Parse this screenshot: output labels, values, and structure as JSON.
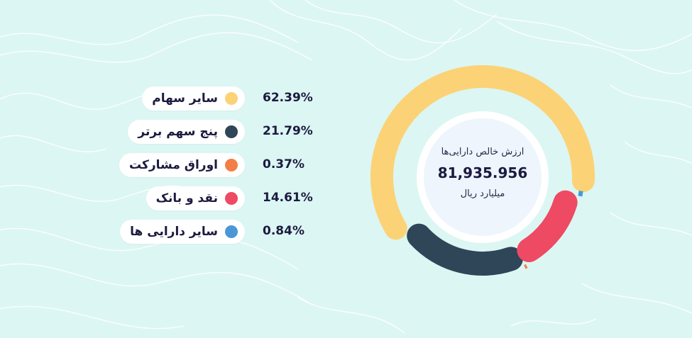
{
  "chart_data": {
    "type": "pie",
    "variant": "donut",
    "center": {
      "title": "ارزش خالص دارایی‌ها",
      "value": "81,935.956",
      "unit": "میلیارد ریال"
    },
    "slices": [
      {
        "label": "سایر سهام",
        "value": 62.39,
        "display": "62.39%",
        "color": "#fcd276"
      },
      {
        "label": "پنج سهم برتر",
        "value": 21.79,
        "display": "21.79%",
        "color": "#2f4558"
      },
      {
        "label": "اوراق مشارکت",
        "value": 0.37,
        "display": "0.37%",
        "color": "#f47f46"
      },
      {
        "label": "نقد و بانک",
        "value": 14.61,
        "display": "14.61%",
        "color": "#ee4a63"
      },
      {
        "label": "سایر دارایی ها",
        "value": 0.84,
        "display": "0.84%",
        "color": "#4b97d6"
      }
    ],
    "legend_position": "left"
  },
  "colors": {
    "background": "#dcf6f3",
    "contour_lines": "#ffffff",
    "center_fill": "#eef5fd"
  }
}
